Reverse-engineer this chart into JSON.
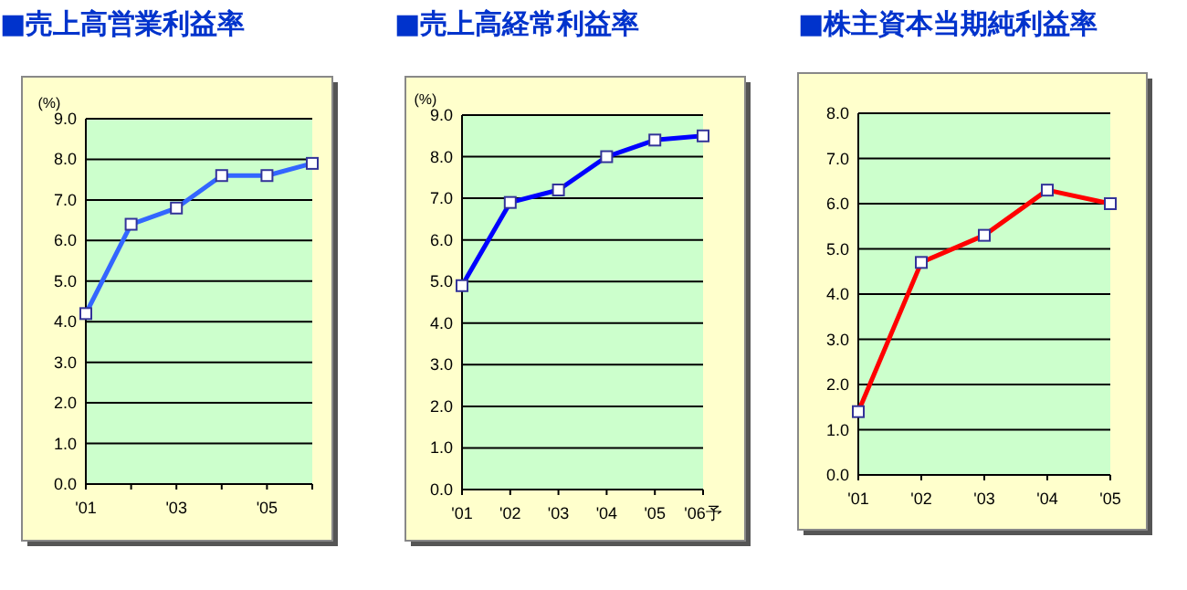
{
  "chart_data": [
    {
      "type": "line",
      "title": "■売上高営業利益率",
      "ylabel": "(%)",
      "categories": [
        "'01",
        null,
        "'03",
        null,
        "'05",
        null
      ],
      "series": [
        {
          "color": "#3366ff",
          "values": [
            4.2,
            6.4,
            6.8,
            7.6,
            7.6,
            7.9
          ]
        }
      ],
      "ylim": [
        0,
        9
      ],
      "yticks": [
        {
          "value": 0,
          "label": "0.0"
        },
        {
          "value": 1,
          "label": "1.0"
        },
        {
          "value": 2,
          "label": "2.0"
        },
        {
          "value": 3,
          "label": "3.0"
        },
        {
          "value": 4,
          "label": "4.0"
        },
        {
          "value": 5,
          "label": "5.0"
        },
        {
          "value": 6,
          "label": "6.0"
        },
        {
          "value": 7,
          "label": "7.0"
        },
        {
          "value": 8,
          "label": "8.0"
        },
        {
          "value": 9,
          "label": "9.0"
        }
      ],
      "grid": "y",
      "marker": "square"
    },
    {
      "type": "line",
      "title": "■売上高経常利益率",
      "ylabel": "(%)",
      "categories": [
        "'01",
        "'02",
        "'03",
        "'04",
        "'05",
        "'06予"
      ],
      "series": [
        {
          "color": "#0000ff",
          "values": [
            4.9,
            6.9,
            7.2,
            8.0,
            8.4,
            8.5
          ]
        }
      ],
      "ylim": [
        0,
        9
      ],
      "yticks": [
        {
          "value": 0,
          "label": "0.0"
        },
        {
          "value": 1,
          "label": "1.0"
        },
        {
          "value": 2,
          "label": "2.0"
        },
        {
          "value": 3,
          "label": "3.0"
        },
        {
          "value": 4,
          "label": "4.0"
        },
        {
          "value": 5,
          "label": "5.0"
        },
        {
          "value": 6,
          "label": "6.0"
        },
        {
          "value": 7,
          "label": "7.0"
        },
        {
          "value": 8,
          "label": "8.0"
        },
        {
          "value": 9,
          "label": "9.0"
        }
      ],
      "grid": "y",
      "marker": "square"
    },
    {
      "type": "line",
      "title": "■株主資本当期純利益率",
      "categories": [
        "'01",
        "'02",
        "'03",
        "'04",
        "'05"
      ],
      "series": [
        {
          "color": "#ff0000",
          "values": [
            1.4,
            4.7,
            5.3,
            6.3,
            6.0
          ]
        }
      ],
      "ylim": [
        0,
        8
      ],
      "yticks": [
        {
          "value": 0,
          "label": "0.0"
        },
        {
          "value": 1,
          "label": "1.0"
        },
        {
          "value": 2,
          "label": "2.0"
        },
        {
          "value": 3,
          "label": "3.0"
        },
        {
          "value": 4,
          "label": "4.0"
        },
        {
          "value": 5,
          "label": "5.0"
        },
        {
          "value": 6,
          "label": "6.0"
        },
        {
          "value": 7,
          "label": "7.0"
        },
        {
          "value": 8,
          "label": "8.0"
        }
      ],
      "grid": "y",
      "marker": "square"
    }
  ]
}
